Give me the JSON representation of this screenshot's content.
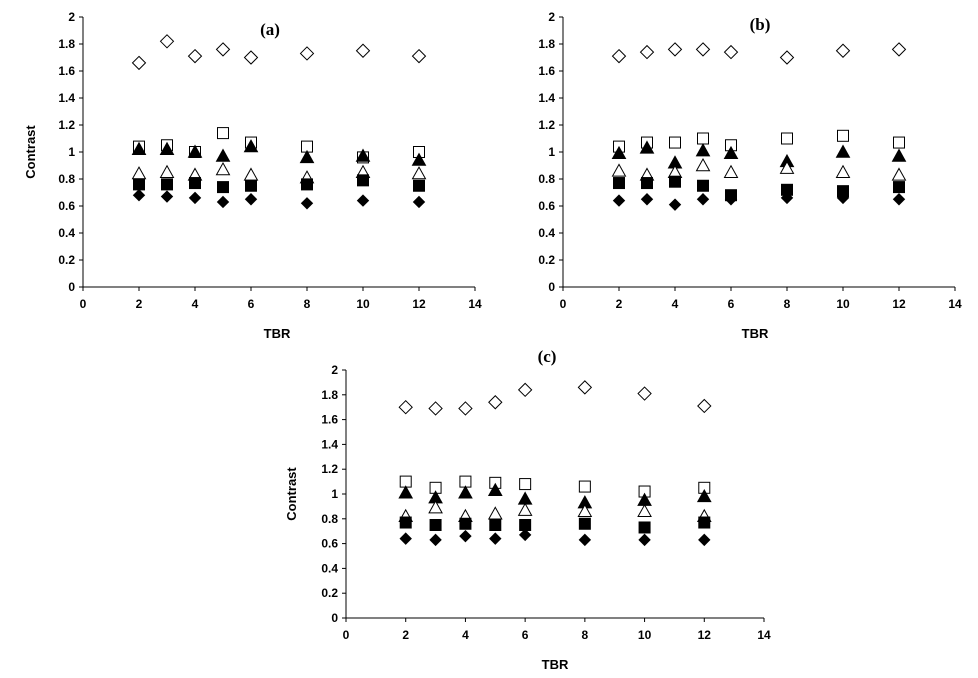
{
  "chart_data": [
    {
      "type": "scatter",
      "panel_label": "(a)",
      "xlabel": "TBR",
      "ylabel": "Contrast",
      "xlim": [
        0,
        14
      ],
      "ylim": [
        0,
        2
      ],
      "xticks": [
        "0",
        "2",
        "4",
        "6",
        "8",
        "10",
        "12",
        "14"
      ],
      "yticks": [
        "0",
        "0.2",
        "0.4",
        "0.6",
        "0.8",
        "1",
        "1.2",
        "1.4",
        "1.6",
        "1.8",
        "2"
      ],
      "grid": false,
      "x": [
        2,
        3,
        4,
        5,
        6,
        8,
        10,
        12
      ],
      "series": [
        {
          "marker": "open-diamond",
          "values": [
            1.66,
            1.82,
            1.71,
            1.76,
            1.7,
            1.73,
            1.75,
            1.71
          ]
        },
        {
          "marker": "open-square",
          "values": [
            1.04,
            1.05,
            1.0,
            1.14,
            1.07,
            1.04,
            0.96,
            1.0
          ]
        },
        {
          "marker": "filled-triangle",
          "values": [
            1.02,
            1.02,
            1.0,
            0.97,
            1.04,
            0.96,
            0.97,
            0.94
          ]
        },
        {
          "marker": "open-triangle",
          "values": [
            0.84,
            0.85,
            0.83,
            0.87,
            0.83,
            0.81,
            0.85,
            0.84
          ]
        },
        {
          "marker": "filled-square",
          "values": [
            0.76,
            0.76,
            0.77,
            0.74,
            0.75,
            0.76,
            0.79,
            0.75
          ]
        },
        {
          "marker": "filled-diamond",
          "values": [
            0.68,
            0.67,
            0.66,
            0.63,
            0.65,
            0.62,
            0.64,
            0.63
          ]
        }
      ]
    },
    {
      "type": "scatter",
      "panel_label": "(b)",
      "xlabel": "TBR",
      "ylabel": "",
      "xlim": [
        0,
        14
      ],
      "ylim": [
        0,
        2
      ],
      "xticks": [
        "0",
        "2",
        "4",
        "6",
        "8",
        "10",
        "12",
        "14"
      ],
      "yticks": [
        "0",
        "0.2",
        "0.4",
        "0.6",
        "0.8",
        "1",
        "1.2",
        "1.4",
        "1.6",
        "1.8",
        "2"
      ],
      "grid": false,
      "x": [
        2,
        3,
        4,
        5,
        6,
        8,
        10,
        12
      ],
      "series": [
        {
          "marker": "open-diamond",
          "values": [
            1.71,
            1.74,
            1.76,
            1.76,
            1.74,
            1.7,
            1.75,
            1.76
          ]
        },
        {
          "marker": "open-square",
          "values": [
            1.04,
            1.07,
            1.07,
            1.1,
            1.05,
            1.1,
            1.12,
            1.07
          ]
        },
        {
          "marker": "filled-triangle",
          "values": [
            0.99,
            1.03,
            0.92,
            1.01,
            0.99,
            0.93,
            1.0,
            0.97
          ]
        },
        {
          "marker": "open-triangle",
          "values": [
            0.86,
            0.83,
            0.85,
            0.9,
            0.85,
            0.88,
            0.85,
            0.83
          ]
        },
        {
          "marker": "filled-square",
          "values": [
            0.77,
            0.77,
            0.78,
            0.75,
            0.68,
            0.72,
            0.71,
            0.74
          ]
        },
        {
          "marker": "filled-diamond",
          "values": [
            0.64,
            0.65,
            0.61,
            0.65,
            0.65,
            0.66,
            0.66,
            0.65
          ]
        }
      ]
    },
    {
      "type": "scatter",
      "panel_label": "(c)",
      "xlabel": "TBR",
      "ylabel": "Contrast",
      "xlim": [
        0,
        14
      ],
      "ylim": [
        0,
        2
      ],
      "xticks": [
        "0",
        "2",
        "4",
        "6",
        "8",
        "10",
        "12",
        "14"
      ],
      "yticks": [
        "0",
        "0.2",
        "0.4",
        "0.6",
        "0.8",
        "1",
        "1.2",
        "1.4",
        "1.6",
        "1.8",
        "2"
      ],
      "grid": false,
      "x": [
        2,
        3,
        4,
        5,
        6,
        8,
        10,
        12
      ],
      "series": [
        {
          "marker": "open-diamond",
          "values": [
            1.7,
            1.69,
            1.69,
            1.74,
            1.84,
            1.86,
            1.81,
            1.71
          ]
        },
        {
          "marker": "open-square",
          "values": [
            1.1,
            1.05,
            1.1,
            1.09,
            1.08,
            1.06,
            1.02,
            1.05
          ]
        },
        {
          "marker": "filled-triangle",
          "values": [
            1.01,
            0.97,
            1.01,
            1.03,
            0.96,
            0.93,
            0.95,
            0.98
          ]
        },
        {
          "marker": "open-triangle",
          "values": [
            0.82,
            0.89,
            0.82,
            0.84,
            0.87,
            0.86,
            0.86,
            0.82
          ]
        },
        {
          "marker": "filled-square",
          "values": [
            0.77,
            0.75,
            0.76,
            0.75,
            0.75,
            0.76,
            0.73,
            0.77
          ]
        },
        {
          "marker": "filled-diamond",
          "values": [
            0.64,
            0.63,
            0.66,
            0.64,
            0.67,
            0.63,
            0.63,
            0.63
          ]
        }
      ]
    }
  ]
}
